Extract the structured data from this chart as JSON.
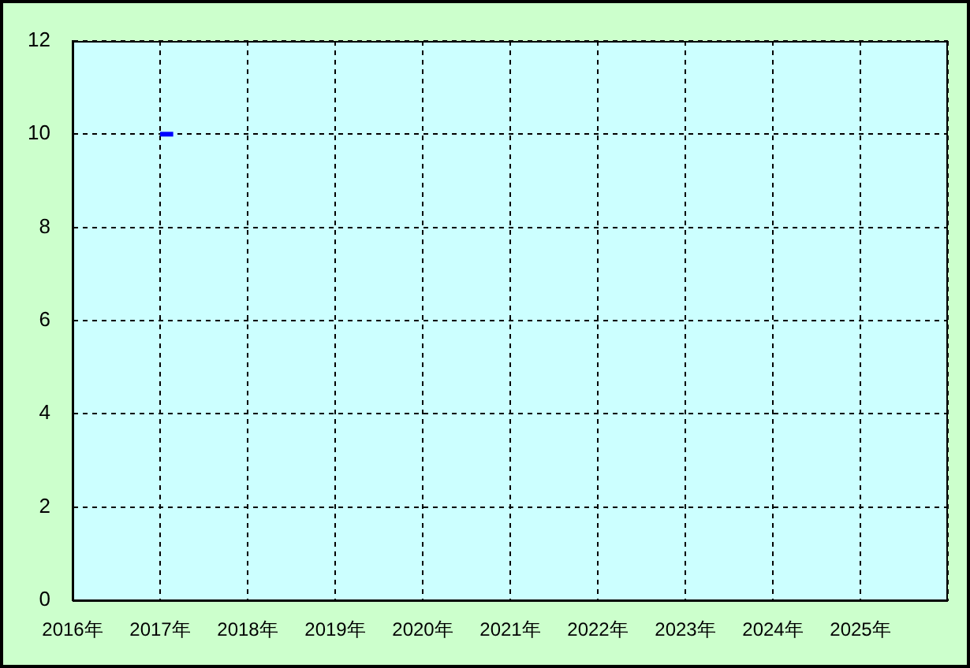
{
  "chart_data": {
    "type": "line",
    "series": [
      {
        "color": "#0000ff",
        "x": [
          2017,
          2017.15
        ],
        "values": [
          10,
          10
        ]
      }
    ],
    "xlim": [
      2016,
      2026
    ],
    "xticks": [
      {
        "value": 2016,
        "label": "2016年"
      },
      {
        "value": 2017,
        "label": "2017年"
      },
      {
        "value": 2018,
        "label": "2018年"
      },
      {
        "value": 2019,
        "label": "2019年"
      },
      {
        "value": 2020,
        "label": "2020年"
      },
      {
        "value": 2021,
        "label": "2021年"
      },
      {
        "value": 2022,
        "label": "2022年"
      },
      {
        "value": 2023,
        "label": "2023年"
      },
      {
        "value": 2024,
        "label": "2024年"
      },
      {
        "value": 2025,
        "label": "2025年"
      },
      {
        "value": 2026,
        "label": null
      }
    ],
    "ylim": [
      0,
      12
    ],
    "yticks": [
      0,
      2,
      4,
      6,
      8,
      10,
      12
    ],
    "grid": true,
    "marker": "none",
    "line_style": "solid",
    "legend": false
  }
}
